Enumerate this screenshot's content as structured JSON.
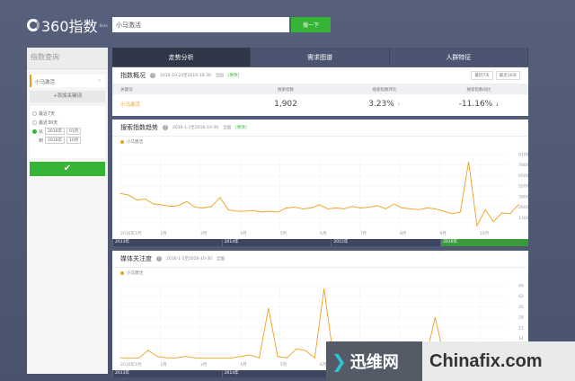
{
  "header": {
    "logo": "360指数",
    "logo_badge": "Beta",
    "search_value": "小马激活",
    "search_button": "搜一下"
  },
  "sidebar": {
    "title": "指数查询",
    "keyword": "小马激活",
    "add_keyword": "+添加关键词",
    "opt7": "最近7天",
    "opt30": "最近30天",
    "from": "从",
    "to": "到",
    "from_year": "2016年",
    "from_month": "01月",
    "to_year": "2016年",
    "to_month": "10月",
    "confirm_icon": "check-icon"
  },
  "tabs": [
    "走势分析",
    "需求图谱",
    "人群特征"
  ],
  "overview": {
    "title": "指数概况",
    "range": "2016-10-24至2016-10-30",
    "region": "全国",
    "change": "[更改]",
    "btn7": "最近7天",
    "btn30": "最近30天",
    "headers": [
      "关键词",
      "搜索指数",
      "搜索指数环比",
      "搜索指数同比"
    ],
    "row": {
      "keyword": "小马激活",
      "index": "1,902",
      "mom": "3.23%",
      "mom_arrow": "↑",
      "yoy": "-11.16%",
      "yoy_arrow": "↓"
    }
  },
  "trend": {
    "title": "搜索指数趋势",
    "range": "2016-1-1至2016-10-30",
    "region": "全国",
    "change": "[更改]"
  },
  "media": {
    "title": "媒体关注度",
    "range": "2016-1-1至2016-10-30",
    "region": "全国"
  },
  "timeline": [
    "2013年",
    "2014年",
    "2015年",
    "2016年"
  ],
  "watermark": {
    "cn": "迅维网",
    "en": "Chinafix.com"
  },
  "colors": {
    "accent": "#35b435",
    "line": "#f0a020",
    "tab_active": "#2f3749"
  },
  "chart_data": [
    {
      "type": "line",
      "series": [
        {
          "name": "小马激活",
          "values": [
            4300,
            4100,
            3500,
            3600,
            3000,
            2900,
            2700,
            2800,
            3300,
            2600,
            2500,
            2700,
            3800,
            2300,
            2100,
            2100,
            2200,
            2000,
            2100,
            2000,
            2500,
            2600,
            2400,
            2500,
            2900,
            2400,
            2500,
            2400,
            2700,
            2500,
            2600,
            2800,
            2400,
            3000,
            2500,
            2400,
            2300,
            2500,
            2400,
            2100,
            1800,
            2000,
            8200,
            300,
            2300,
            800,
            1900,
            1800,
            2900
          ]
        }
      ],
      "x_ticks": [
        "2016年1月",
        "2月",
        "3月",
        "4月",
        "5月",
        "6月",
        "7月",
        "8月",
        "9月",
        "10月"
      ],
      "y_ticks": [
        1300,
        2600,
        3900,
        5200,
        6500,
        7800,
        9100
      ],
      "ylim": [
        0,
        9100
      ],
      "grid": true,
      "legend": "top-left"
    },
    {
      "type": "line",
      "series": [
        {
          "name": "小马激活",
          "values": [
            1,
            1,
            1,
            6,
            2,
            1,
            1,
            2,
            1,
            1,
            1,
            1,
            1,
            2,
            3,
            1,
            34,
            2,
            1,
            7,
            6,
            1,
            47,
            2,
            1,
            1,
            1,
            2,
            1,
            1,
            1,
            1,
            2,
            1,
            28,
            1,
            1,
            1,
            1,
            1,
            1,
            1,
            1,
            1
          ]
        }
      ],
      "x_ticks": [
        "2016年1月",
        "2月",
        "3月",
        "4月",
        "5月",
        "6月"
      ],
      "y_ticks": [
        14,
        21,
        28,
        35,
        42,
        49
      ],
      "ylim": [
        0,
        49
      ],
      "grid": true,
      "legend": "top-left"
    }
  ]
}
